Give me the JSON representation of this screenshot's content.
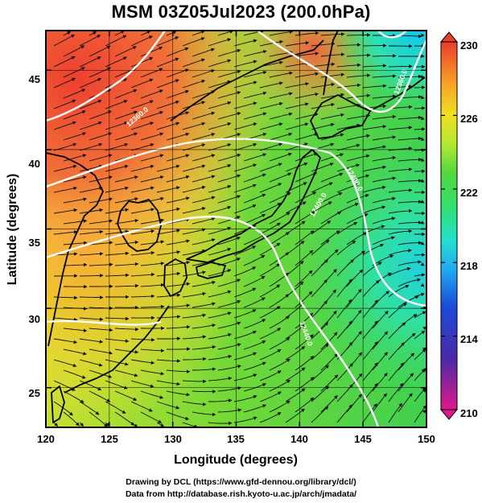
{
  "title": "MSM 03Z05Jul2023 (200.0hPa)",
  "credits": {
    "line1": "Drawing by DCL (https://www.gfd-dennou.org/library/dcl/)",
    "line2": "Data from http://database.rish.kyoto-u.ac.jp/arch/jmadata/"
  },
  "map": {
    "xlabel": "Longitude (degrees)",
    "ylabel": "Latitude  (degrees)",
    "x_ticks": [
      "120",
      "125",
      "130",
      "135",
      "140",
      "145",
      "150"
    ],
    "y_ticks": [
      "25",
      "30",
      "35",
      "40",
      "45"
    ],
    "xlim": [
      120,
      150
    ],
    "ylim": [
      22.5,
      47.5
    ],
    "contour_labels": [
      "12360.0",
      "12400.0",
      "12440.0",
      "12400.0",
      "12360.0",
      "12320.0",
      "12280.0"
    ]
  },
  "colorbar": {
    "min": 210,
    "max": 230,
    "tick_labels": [
      "230",
      "226",
      "222",
      "218",
      "214",
      "210"
    ],
    "colors": [
      "#e0188c",
      "#0a2890",
      "#2060e8",
      "#20d0f0",
      "#30e890",
      "#40d840",
      "#b0e830",
      "#f0e020",
      "#f8b028",
      "#f06030",
      "#e03828"
    ]
  }
}
